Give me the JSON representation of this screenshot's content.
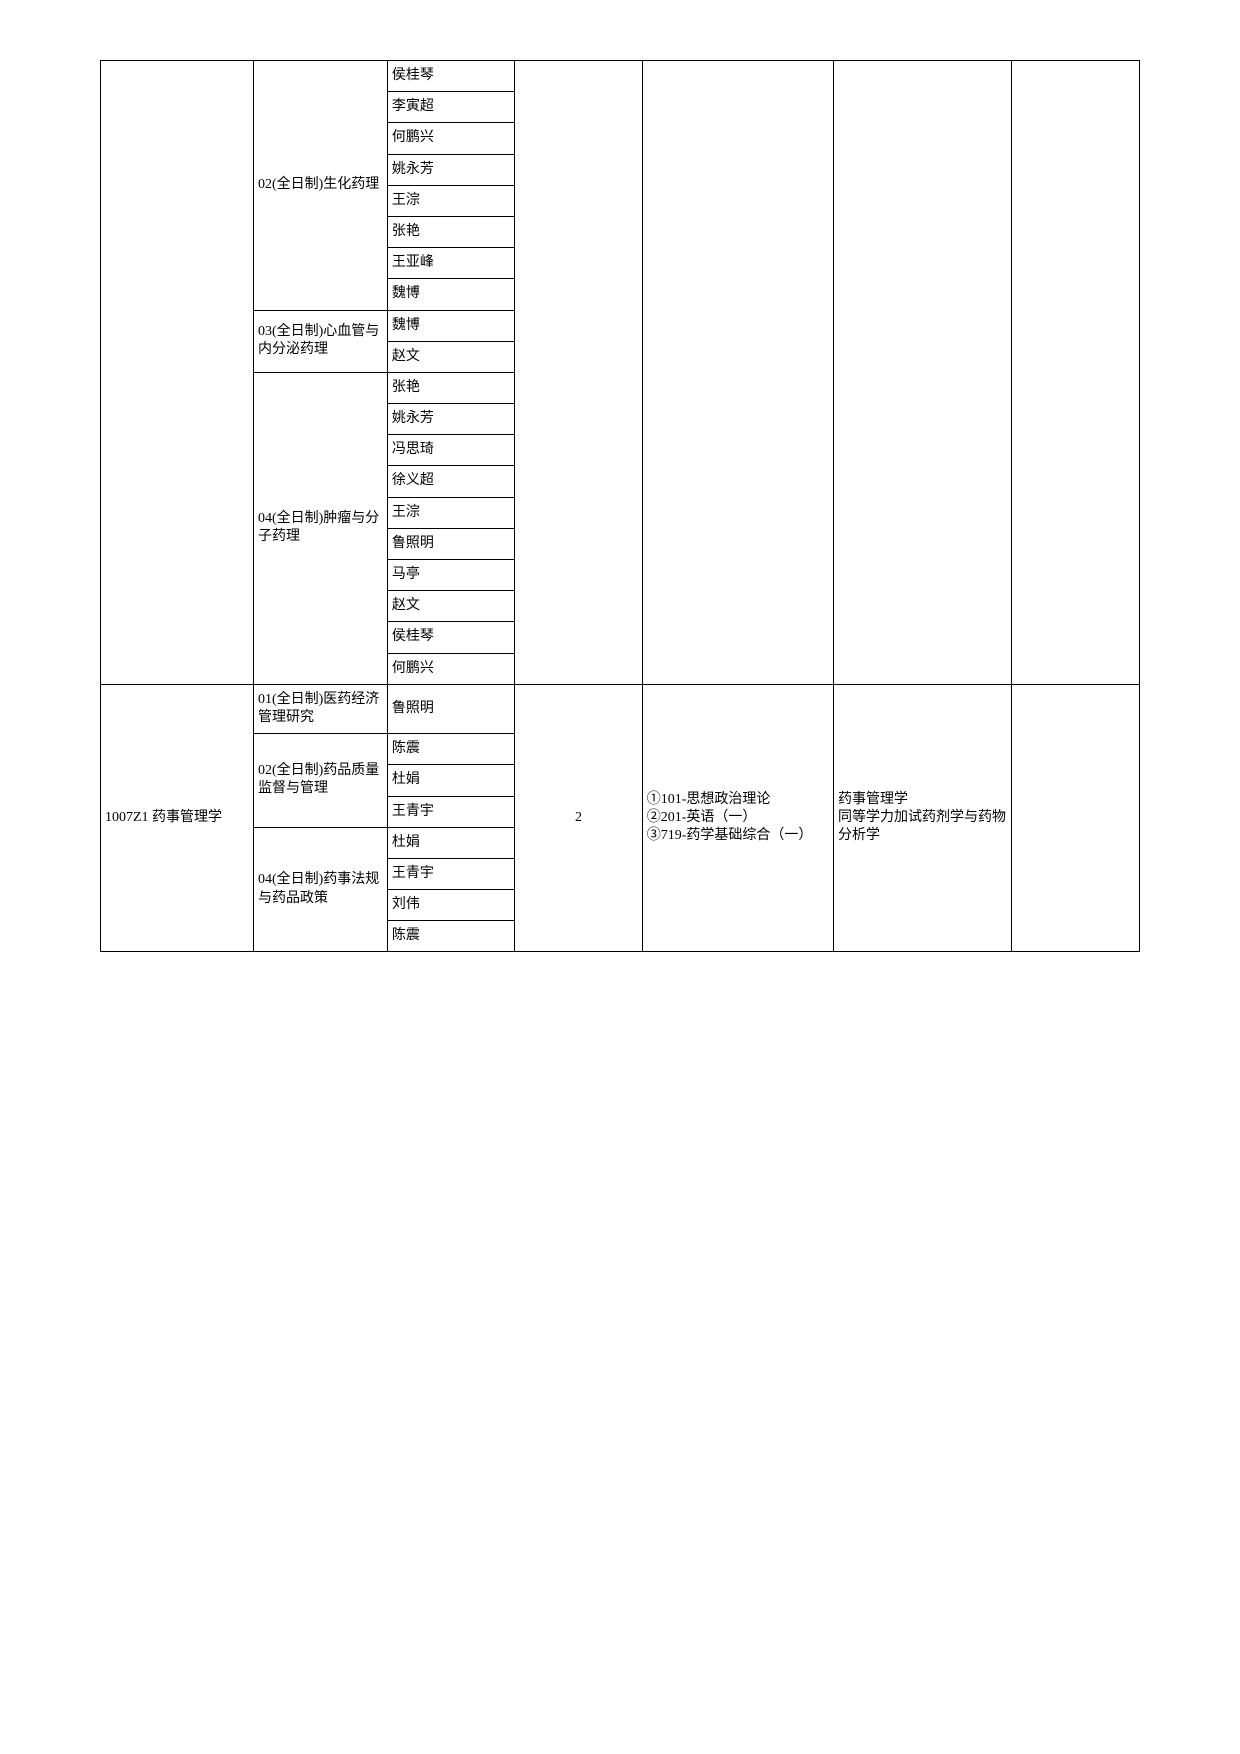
{
  "row1": {
    "col1": "",
    "section2_label": "02(全日制)生化药理",
    "section2_names": [
      "侯桂琴",
      "李寅超",
      "何鹏兴",
      "姚永芳",
      "王淙",
      "张艳",
      "王亚峰",
      "魏博"
    ],
    "section3_label": "03(全日制)心血管与内分泌药理",
    "section3_names": [
      "魏博",
      "赵文"
    ],
    "section4_label": "04(全日制)肿瘤与分子药理",
    "section4_names": [
      "张艳",
      "姚永芳",
      "冯思琦",
      "徐义超",
      "王淙",
      "鲁照明",
      "马亭",
      "赵文",
      "侯桂琴",
      "何鹏兴"
    ],
    "col4": "",
    "col5": "",
    "col6": "",
    "col7": ""
  },
  "row2": {
    "col1": "1007Z1 药事管理学",
    "section1_label": "01(全日制)医药经济管理研究",
    "section1_names": [
      "鲁照明"
    ],
    "section2_label": "02(全日制)药品质量监督与管理",
    "section2_names": [
      "陈震",
      "杜娟",
      "王青宇"
    ],
    "section4_label": "04(全日制)药事法规与药品政策",
    "section4_names": [
      "杜娟",
      "王青宇",
      "刘伟",
      "陈震"
    ],
    "col4": "2",
    "col5": "①101-思想政治理论\n②201-英语（一）\n③719-药学基础综合（一）",
    "col6": "药事管理学\n同等学力加试药剂学与药物分析学",
    "col7": ""
  }
}
